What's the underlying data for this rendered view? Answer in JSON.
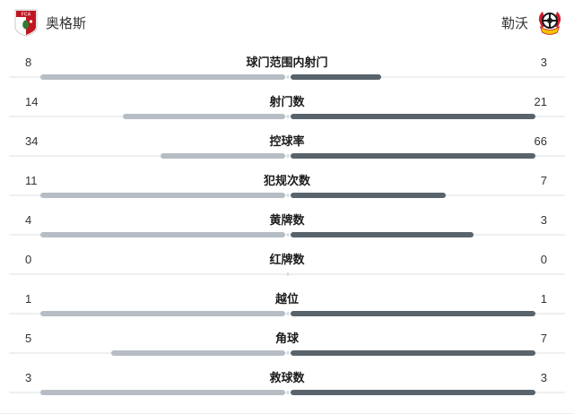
{
  "header": {
    "home": {
      "name": "奥格斯",
      "logo": "augsburg-crest"
    },
    "away": {
      "name": "勒沃",
      "logo": "leverkusen-crest"
    }
  },
  "chart_data": {
    "type": "bar",
    "subtype": "opposed-horizontal-match-stats",
    "title": "",
    "categories": [
      "球门范围内射门",
      "射门数",
      "控球率",
      "犯规次数",
      "黄牌数",
      "红牌数",
      "越位",
      "角球",
      "救球数"
    ],
    "keys": [
      "shots-on-target",
      "shots",
      "possession",
      "fouls",
      "yellow-cards",
      "red-cards",
      "offsides",
      "corners",
      "saves"
    ],
    "series": [
      {
        "name": "奥格斯",
        "side": "left",
        "color": "#b6bdc4",
        "values": [
          8,
          14,
          34,
          11,
          4,
          0,
          1,
          5,
          3
        ]
      },
      {
        "name": "勒沃",
        "side": "right",
        "color": "#59636c",
        "values": [
          3,
          21,
          66,
          7,
          3,
          0,
          1,
          7,
          3
        ]
      }
    ],
    "scaling": "each row scaled to the larger of the two values",
    "track_color": "#edeff1",
    "legend_position": "header",
    "grid": false
  }
}
